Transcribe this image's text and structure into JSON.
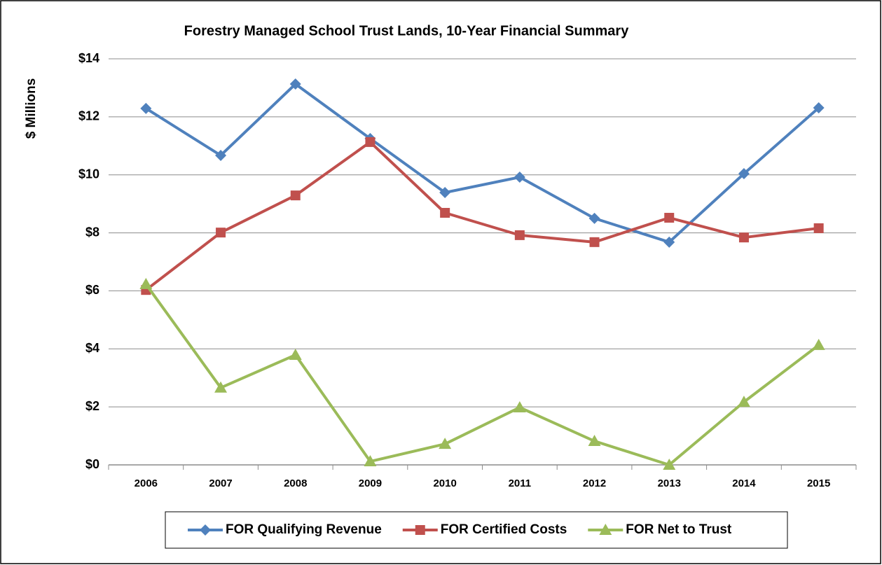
{
  "chart_data": {
    "type": "line",
    "title": "Forestry Managed School Trust Lands, 10-Year Financial Summary",
    "y_label": "$ Millions",
    "categories": [
      "2006",
      "2007",
      "2008",
      "2009",
      "2010",
      "2011",
      "2012",
      "2013",
      "2014",
      "2015"
    ],
    "series": [
      {
        "name": "FOR Qualifying Revenue",
        "color": "#4f81bd",
        "marker": "diamond",
        "values": [
          12.29,
          10.67,
          13.13,
          11.25,
          9.39,
          9.92,
          8.5,
          7.68,
          10.04,
          12.31
        ]
      },
      {
        "name": "FOR Certified Costs",
        "color": "#c0504d",
        "marker": "square",
        "values": [
          6.03,
          8.01,
          9.29,
          11.13,
          8.69,
          7.92,
          7.68,
          8.52,
          7.84,
          8.16
        ]
      },
      {
        "name": "FOR Net  to Trust",
        "color": "#9bbb59",
        "marker": "triangle",
        "values": [
          6.23,
          2.66,
          3.79,
          0.12,
          0.72,
          1.98,
          0.82,
          0,
          2.17,
          4.13
        ]
      }
    ],
    "ylim": [
      0,
      14
    ],
    "yticks": [
      {
        "value": 0,
        "label": "$0"
      },
      {
        "value": 2,
        "label": "$2"
      },
      {
        "value": 4,
        "label": "$4"
      },
      {
        "value": 6,
        "label": "$6"
      },
      {
        "value": 8,
        "label": "$8"
      },
      {
        "value": 10,
        "label": "$10"
      },
      {
        "value": 12,
        "label": "$12"
      },
      {
        "value": 14,
        "label": "$14"
      }
    ],
    "grid": true,
    "legend": "bottom"
  }
}
